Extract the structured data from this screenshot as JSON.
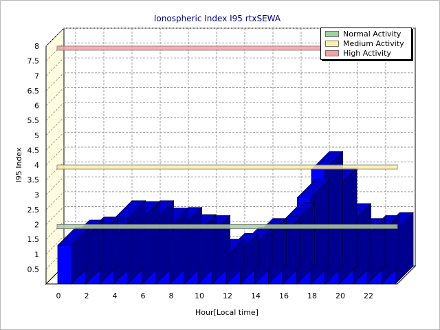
{
  "chart_data": {
    "type": "bar",
    "title": "Ionospheric Index I95 rtxSEWA",
    "xlabel": "Hour[Local time]",
    "ylabel": "I95 Index",
    "ylim": [
      0,
      8
    ],
    "yticks": [
      "0.5",
      "1",
      "1.5",
      "2",
      "2.5",
      "3",
      "3.5",
      "4",
      "4.5",
      "5",
      "5.5",
      "6",
      "6.5",
      "7",
      "7.5",
      "8"
    ],
    "xticks": [
      "0",
      "2",
      "4",
      "6",
      "8",
      "10",
      "12",
      "14",
      "16",
      "18",
      "20",
      "22"
    ],
    "grid": true,
    "legend_position": "top-right",
    "bar_color": "#0000ff",
    "hours": [
      0,
      1,
      2,
      3,
      4,
      5,
      6,
      7,
      8,
      9,
      10,
      11,
      12,
      13,
      14,
      15,
      16,
      17,
      18,
      19,
      20,
      21,
      22,
      23
    ],
    "values": [
      1.3,
      1.55,
      1.65,
      1.55,
      2.2,
      2.17,
      2.2,
      1.95,
      1.97,
      1.73,
      1.7,
      0.9,
      1.1,
      1.3,
      1.6,
      1.65,
      2.13,
      2.9,
      3.85,
      3.3,
      2.1,
      1.6,
      1.7,
      1.8
    ],
    "bands": [
      {
        "label": "Normal Activity",
        "value": 2,
        "color": "#9fd4a0"
      },
      {
        "label": "Medium Activity",
        "value": 4,
        "color": "#fff0a0"
      },
      {
        "label": "High Activity",
        "value": 8,
        "color": "#ff9e9e"
      }
    ]
  }
}
